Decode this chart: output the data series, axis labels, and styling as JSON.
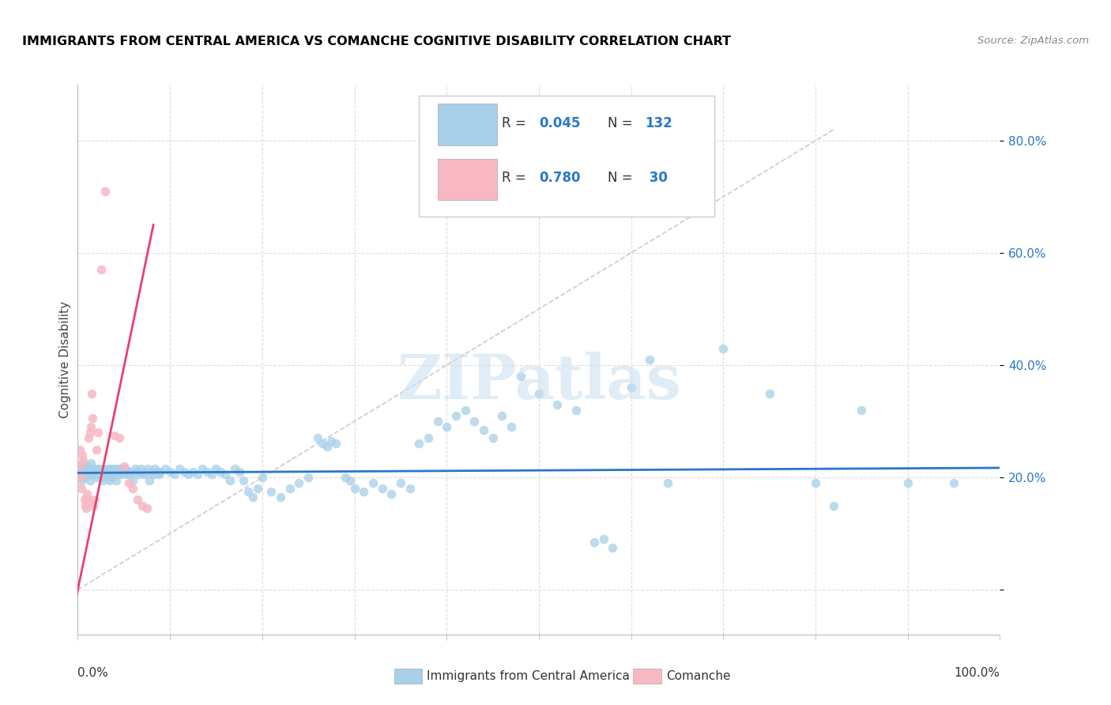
{
  "title": "IMMIGRANTS FROM CENTRAL AMERICA VS COMANCHE COGNITIVE DISABILITY CORRELATION CHART",
  "source": "Source: ZipAtlas.com",
  "ylabel": "Cognitive Disability",
  "y_ticks": [
    0.0,
    0.2,
    0.4,
    0.6,
    0.8
  ],
  "y_tick_labels": [
    "",
    "20.0%",
    "40.0%",
    "60.0%",
    "80.0%"
  ],
  "x_lim": [
    0.0,
    1.0
  ],
  "y_lim": [
    -0.08,
    0.9
  ],
  "blue_color": "#a8d0e8",
  "pink_color": "#f7b8c4",
  "blue_line_color": "#2878c8",
  "pink_line_color": "#e84070",
  "diag_line_color": "#cccccc",
  "watermark": "ZIPatlas",
  "legend_label_blue": "Immigrants from Central America",
  "legend_label_pink": "Comanche",
  "blue_scatter": [
    [
      0.001,
      0.215
    ],
    [
      0.002,
      0.205
    ],
    [
      0.003,
      0.22
    ],
    [
      0.004,
      0.195
    ],
    [
      0.005,
      0.225
    ],
    [
      0.006,
      0.21
    ],
    [
      0.007,
      0.2
    ],
    [
      0.008,
      0.215
    ],
    [
      0.009,
      0.21
    ],
    [
      0.01,
      0.205
    ],
    [
      0.011,
      0.22
    ],
    [
      0.012,
      0.21
    ],
    [
      0.013,
      0.195
    ],
    [
      0.014,
      0.225
    ],
    [
      0.015,
      0.205
    ],
    [
      0.016,
      0.21
    ],
    [
      0.017,
      0.215
    ],
    [
      0.018,
      0.205
    ],
    [
      0.019,
      0.21
    ],
    [
      0.02,
      0.2
    ],
    [
      0.021,
      0.215
    ],
    [
      0.022,
      0.21
    ],
    [
      0.023,
      0.205
    ],
    [
      0.024,
      0.215
    ],
    [
      0.025,
      0.21
    ],
    [
      0.026,
      0.2
    ],
    [
      0.027,
      0.195
    ],
    [
      0.028,
      0.215
    ],
    [
      0.029,
      0.21
    ],
    [
      0.03,
      0.205
    ],
    [
      0.031,
      0.21
    ],
    [
      0.032,
      0.215
    ],
    [
      0.033,
      0.2
    ],
    [
      0.034,
      0.21
    ],
    [
      0.035,
      0.195
    ],
    [
      0.036,
      0.215
    ],
    [
      0.037,
      0.21
    ],
    [
      0.038,
      0.2
    ],
    [
      0.039,
      0.215
    ],
    [
      0.04,
      0.21
    ],
    [
      0.041,
      0.205
    ],
    [
      0.042,
      0.195
    ],
    [
      0.043,
      0.215
    ],
    [
      0.044,
      0.21
    ],
    [
      0.045,
      0.205
    ],
    [
      0.046,
      0.21
    ],
    [
      0.047,
      0.215
    ],
    [
      0.048,
      0.21
    ],
    [
      0.05,
      0.205
    ],
    [
      0.052,
      0.215
    ],
    [
      0.054,
      0.21
    ],
    [
      0.056,
      0.205
    ],
    [
      0.058,
      0.21
    ],
    [
      0.06,
      0.195
    ],
    [
      0.062,
      0.215
    ],
    [
      0.064,
      0.21
    ],
    [
      0.066,
      0.205
    ],
    [
      0.068,
      0.215
    ],
    [
      0.07,
      0.21
    ],
    [
      0.072,
      0.205
    ],
    [
      0.074,
      0.21
    ],
    [
      0.076,
      0.215
    ],
    [
      0.078,
      0.195
    ],
    [
      0.08,
      0.21
    ],
    [
      0.082,
      0.205
    ],
    [
      0.084,
      0.215
    ],
    [
      0.086,
      0.21
    ],
    [
      0.088,
      0.205
    ],
    [
      0.09,
      0.21
    ],
    [
      0.095,
      0.215
    ],
    [
      0.1,
      0.21
    ],
    [
      0.105,
      0.205
    ],
    [
      0.11,
      0.215
    ],
    [
      0.115,
      0.21
    ],
    [
      0.12,
      0.205
    ],
    [
      0.125,
      0.21
    ],
    [
      0.13,
      0.205
    ],
    [
      0.135,
      0.215
    ],
    [
      0.14,
      0.21
    ],
    [
      0.145,
      0.205
    ],
    [
      0.15,
      0.215
    ],
    [
      0.155,
      0.21
    ],
    [
      0.16,
      0.205
    ],
    [
      0.165,
      0.195
    ],
    [
      0.17,
      0.215
    ],
    [
      0.175,
      0.21
    ],
    [
      0.18,
      0.195
    ],
    [
      0.185,
      0.175
    ],
    [
      0.19,
      0.165
    ],
    [
      0.195,
      0.18
    ],
    [
      0.2,
      0.2
    ],
    [
      0.21,
      0.175
    ],
    [
      0.22,
      0.165
    ],
    [
      0.23,
      0.18
    ],
    [
      0.24,
      0.19
    ],
    [
      0.25,
      0.2
    ],
    [
      0.26,
      0.27
    ],
    [
      0.265,
      0.26
    ],
    [
      0.27,
      0.255
    ],
    [
      0.275,
      0.265
    ],
    [
      0.28,
      0.26
    ],
    [
      0.29,
      0.2
    ],
    [
      0.295,
      0.195
    ],
    [
      0.3,
      0.18
    ],
    [
      0.31,
      0.175
    ],
    [
      0.32,
      0.19
    ],
    [
      0.33,
      0.18
    ],
    [
      0.34,
      0.17
    ],
    [
      0.35,
      0.19
    ],
    [
      0.36,
      0.18
    ],
    [
      0.37,
      0.26
    ],
    [
      0.38,
      0.27
    ],
    [
      0.39,
      0.3
    ],
    [
      0.4,
      0.29
    ],
    [
      0.41,
      0.31
    ],
    [
      0.42,
      0.32
    ],
    [
      0.43,
      0.3
    ],
    [
      0.44,
      0.285
    ],
    [
      0.45,
      0.27
    ],
    [
      0.46,
      0.31
    ],
    [
      0.47,
      0.29
    ],
    [
      0.48,
      0.38
    ],
    [
      0.5,
      0.35
    ],
    [
      0.52,
      0.33
    ],
    [
      0.54,
      0.32
    ],
    [
      0.56,
      0.085
    ],
    [
      0.57,
      0.09
    ],
    [
      0.58,
      0.075
    ],
    [
      0.6,
      0.36
    ],
    [
      0.62,
      0.41
    ],
    [
      0.64,
      0.19
    ],
    [
      0.7,
      0.43
    ],
    [
      0.75,
      0.35
    ],
    [
      0.8,
      0.19
    ],
    [
      0.82,
      0.15
    ],
    [
      0.85,
      0.32
    ],
    [
      0.9,
      0.19
    ],
    [
      0.95,
      0.19
    ]
  ],
  "pink_scatter": [
    [
      0.001,
      0.22
    ],
    [
      0.002,
      0.25
    ],
    [
      0.003,
      0.2
    ],
    [
      0.004,
      0.18
    ],
    [
      0.005,
      0.24
    ],
    [
      0.006,
      0.23
    ],
    [
      0.007,
      0.16
    ],
    [
      0.008,
      0.15
    ],
    [
      0.009,
      0.145
    ],
    [
      0.01,
      0.17
    ],
    [
      0.011,
      0.16
    ],
    [
      0.012,
      0.27
    ],
    [
      0.013,
      0.28
    ],
    [
      0.014,
      0.29
    ],
    [
      0.015,
      0.35
    ],
    [
      0.016,
      0.305
    ],
    [
      0.017,
      0.15
    ],
    [
      0.018,
      0.16
    ],
    [
      0.02,
      0.25
    ],
    [
      0.022,
      0.28
    ],
    [
      0.025,
      0.57
    ],
    [
      0.03,
      0.71
    ],
    [
      0.04,
      0.275
    ],
    [
      0.045,
      0.27
    ],
    [
      0.05,
      0.22
    ],
    [
      0.055,
      0.19
    ],
    [
      0.06,
      0.18
    ],
    [
      0.065,
      0.16
    ],
    [
      0.07,
      0.15
    ],
    [
      0.075,
      0.145
    ]
  ],
  "blue_trendline": [
    [
      0.0,
      0.208
    ],
    [
      1.0,
      0.217
    ]
  ],
  "pink_trendline": [
    [
      -0.005,
      -0.04
    ],
    [
      0.082,
      0.65
    ]
  ],
  "diag_trendline": [
    [
      0.0,
      0.0
    ],
    [
      0.82,
      0.82
    ]
  ]
}
